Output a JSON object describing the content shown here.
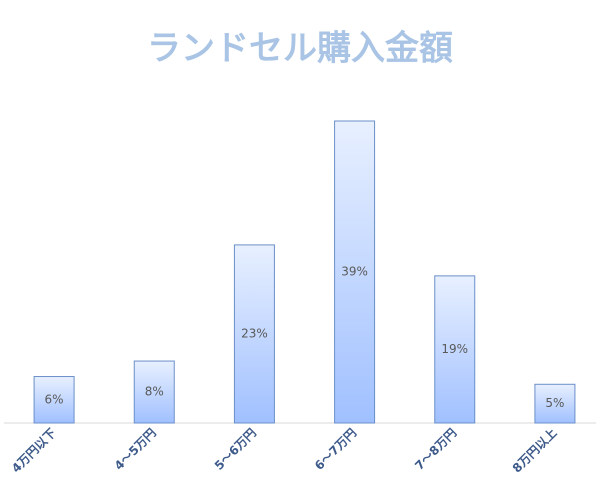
{
  "chart_data": {
    "type": "bar",
    "title": "ランドセル購入金額",
    "categories": [
      "4万円以下",
      "4～5万円",
      "5～6万円",
      "6～7万円",
      "7～8万円",
      "8万円以上"
    ],
    "values": [
      6,
      8,
      23,
      39,
      19,
      5
    ],
    "value_labels": [
      "6%",
      "8%",
      "23%",
      "39%",
      "19%",
      "5%"
    ],
    "color": "#a0c0ff"
  }
}
